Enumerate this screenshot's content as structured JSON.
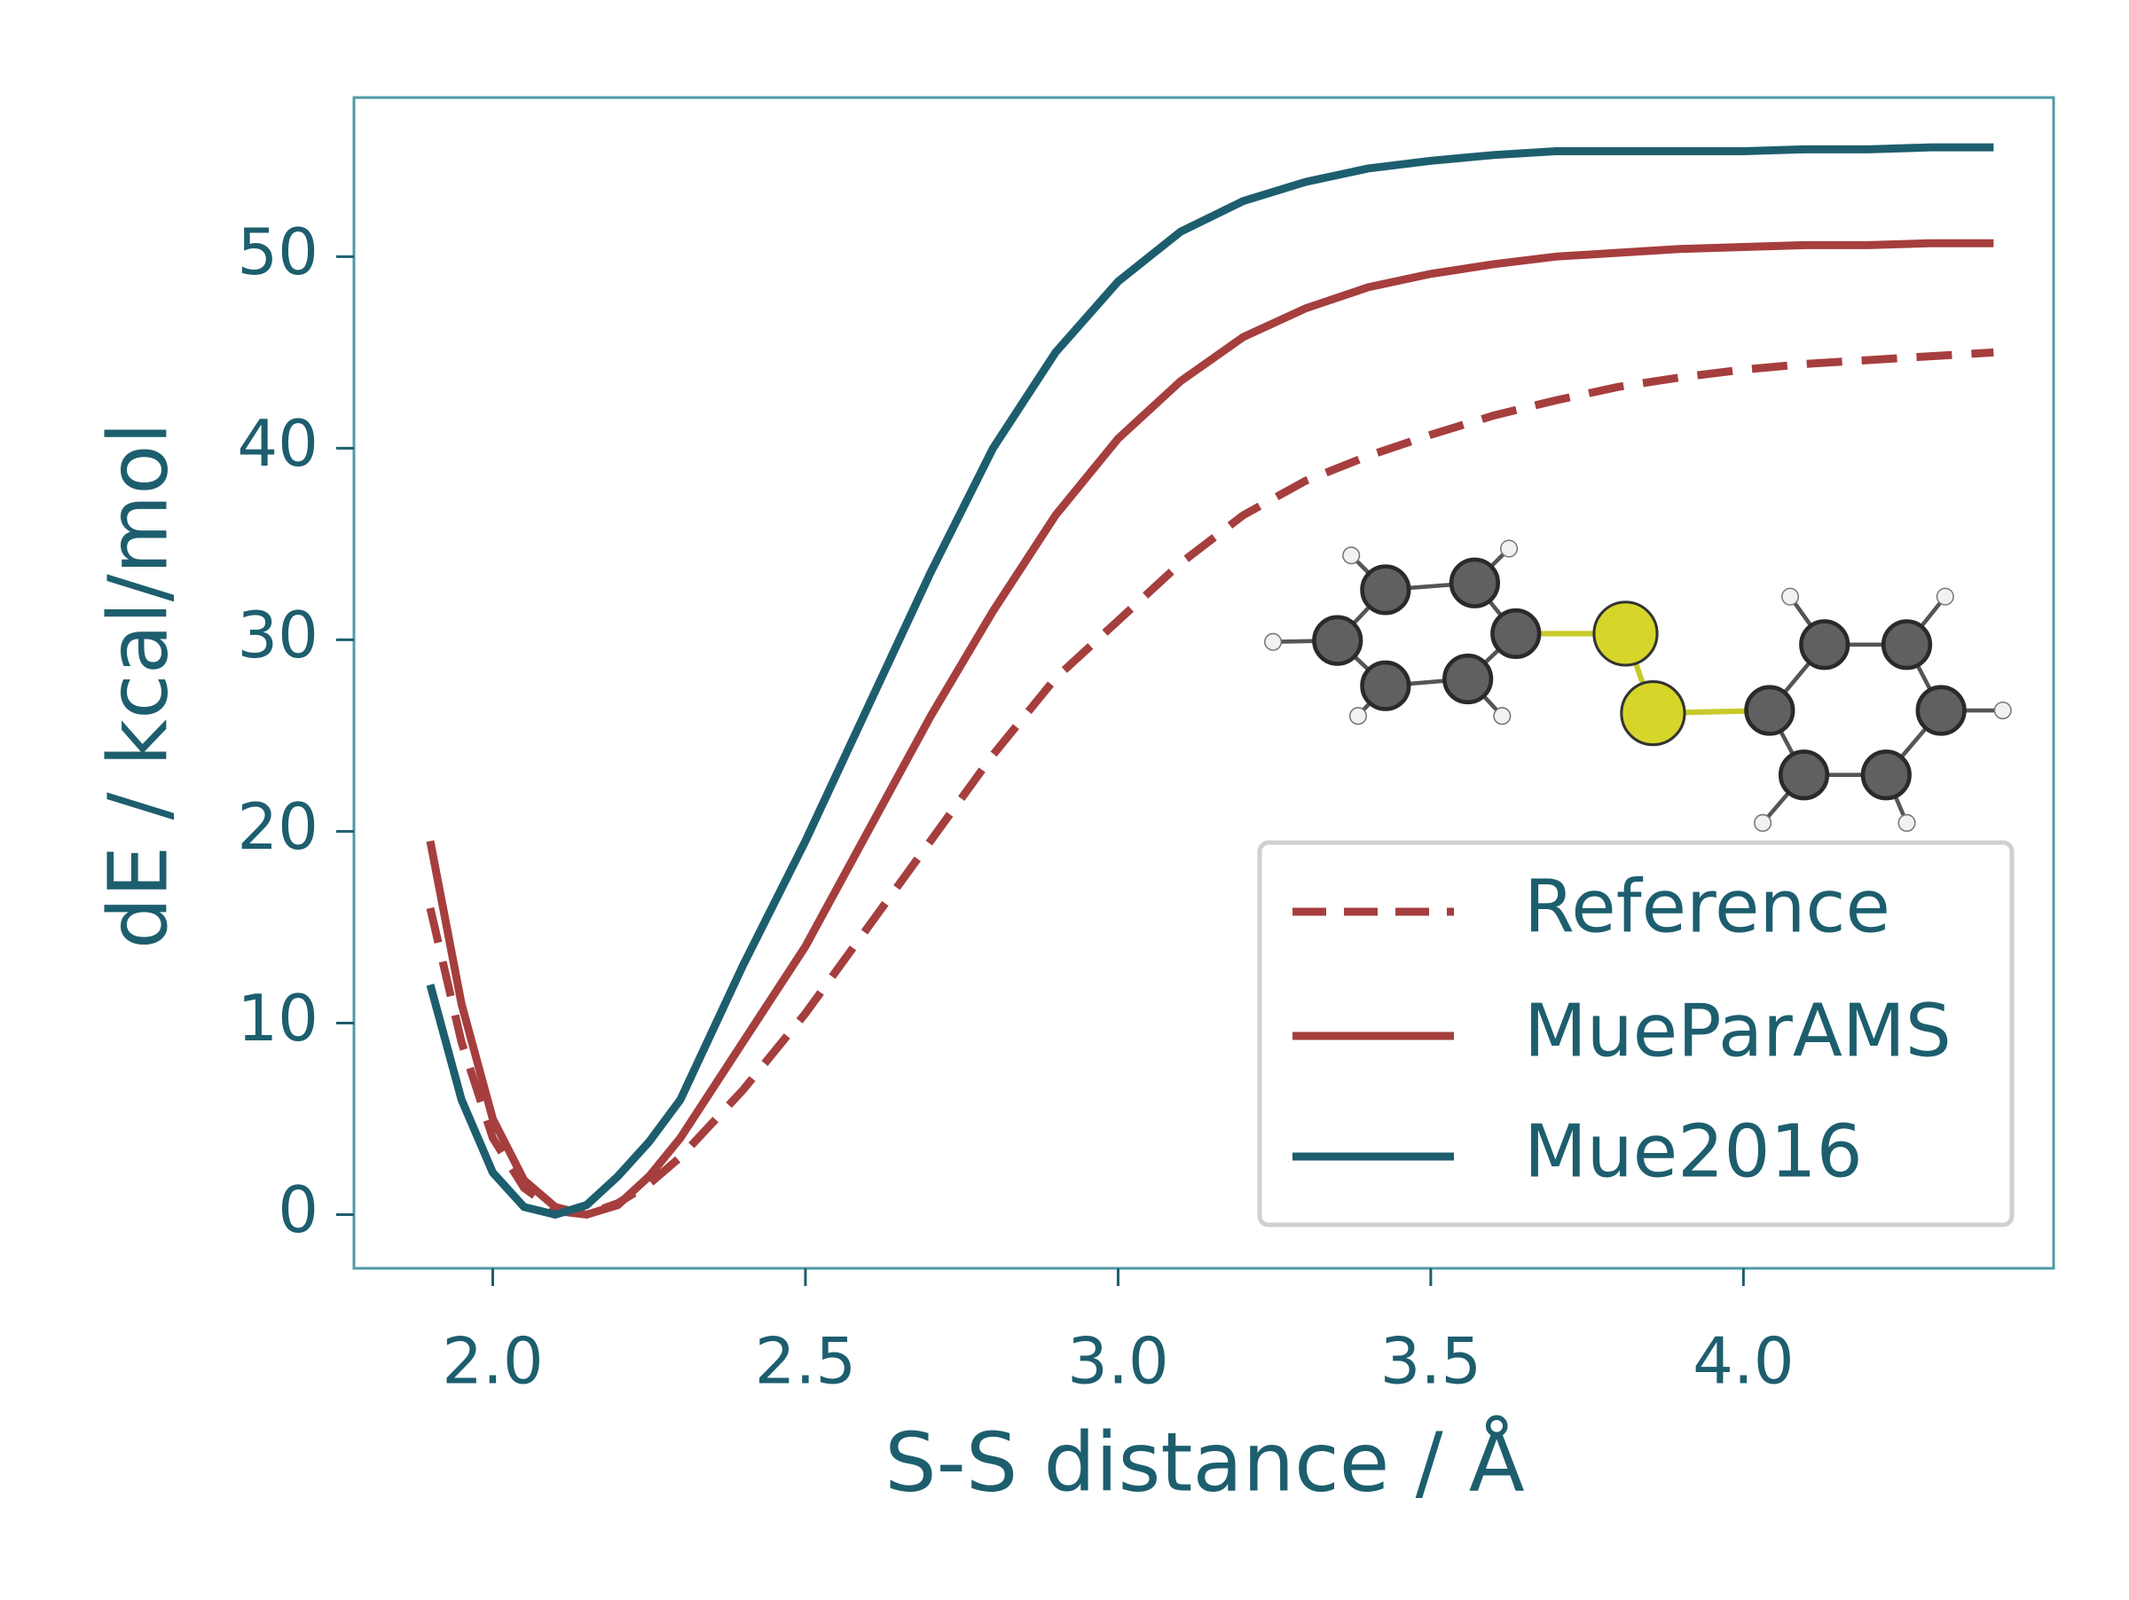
{
  "chart_data": {
    "type": "line",
    "x_label": "S-S distance / Å",
    "y_label": "dE / kcal/mol",
    "x": [
      1.9,
      1.95,
      2.0,
      2.05,
      2.1,
      2.15,
      2.2,
      2.25,
      2.3,
      2.4,
      2.5,
      2.6,
      2.7,
      2.8,
      2.9,
      3.0,
      3.1,
      3.2,
      3.3,
      3.4,
      3.5,
      3.6,
      3.7,
      3.8,
      3.9,
      4.0,
      4.1,
      4.2,
      4.3,
      4.4
    ],
    "series": [
      {
        "name": "Reference",
        "color": "#a63e3e",
        "linestyle": "dashed",
        "values": [
          16,
          9,
          4,
          1.4,
          0.2,
          0,
          0.6,
          1.6,
          3,
          6.5,
          10.5,
          15,
          19.5,
          24,
          28,
          31,
          34,
          36.5,
          38.3,
          39.6,
          40.7,
          41.7,
          42.5,
          43.2,
          43.7,
          44.1,
          44.4,
          44.6,
          44.8,
          45
        ]
      },
      {
        "name": "MueParAMS",
        "color": "#a63e3e",
        "linestyle": "solid",
        "values": [
          19.5,
          11,
          5,
          1.8,
          0.4,
          0,
          0.5,
          2,
          4,
          9,
          14,
          20,
          26,
          31.5,
          36.5,
          40.5,
          43.5,
          45.8,
          47.3,
          48.4,
          49.1,
          49.6,
          50,
          50.2,
          50.4,
          50.5,
          50.6,
          50.6,
          50.7,
          50.7
        ]
      },
      {
        "name": "Mue2016",
        "color": "#1d5e6e",
        "linestyle": "solid",
        "values": [
          12,
          6,
          2.2,
          0.4,
          0,
          0.5,
          2,
          3.8,
          6,
          13,
          19.5,
          26.5,
          33.5,
          40,
          45,
          48.7,
          51.3,
          52.9,
          53.9,
          54.6,
          55,
          55.3,
          55.5,
          55.5,
          55.5,
          55.5,
          55.6,
          55.6,
          55.7,
          55.7
        ]
      }
    ],
    "xlim": [
      1.778,
      4.496
    ],
    "ylim": [
      -2.8,
      58.3
    ],
    "xticks": [
      {
        "value": 2.0,
        "label": "2.0"
      },
      2.5,
      {
        "value": 3.0,
        "label": "3.0"
      },
      3.5,
      {
        "value": 4.0,
        "label": "4.0"
      }
    ],
    "yticks": [
      0,
      10,
      20,
      30,
      40,
      50
    ],
    "legend": "lower right",
    "grid": false
  }
}
